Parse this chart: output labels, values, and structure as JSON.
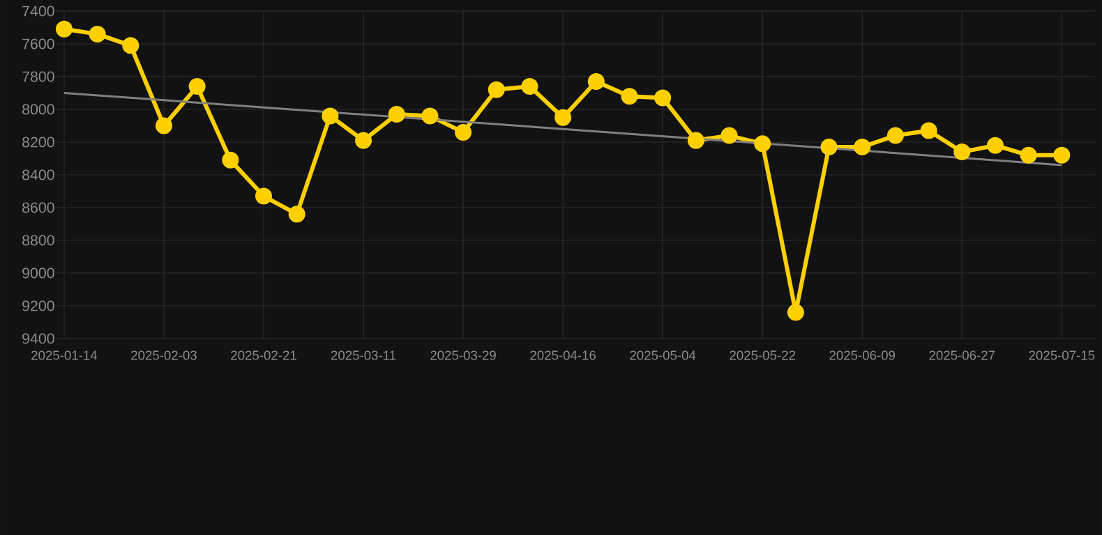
{
  "chart_data": {
    "type": "line",
    "categories": [
      "2025-01-14",
      null,
      null,
      "2025-02-03",
      null,
      null,
      "2025-02-21",
      null,
      null,
      "2025-03-11",
      null,
      null,
      "2025-03-29",
      null,
      null,
      "2025-04-16",
      null,
      null,
      "2025-05-04",
      null,
      null,
      "2025-05-22",
      null,
      null,
      "2025-06-09",
      null,
      null,
      "2025-06-27",
      null,
      null,
      "2025-07-15"
    ],
    "series": [
      {
        "color": "#ffd000",
        "marker": "circle",
        "values": [
          7510,
          7540,
          7610,
          8100,
          7860,
          8310,
          8530,
          8640,
          8040,
          8190,
          8030,
          8040,
          8140,
          7880,
          7860,
          8050,
          7830,
          7920,
          7930,
          8190,
          8160,
          8210,
          9240,
          8230,
          8230,
          8160,
          8130,
          8260,
          8220,
          8280,
          8280
        ]
      },
      {
        "type": "line",
        "color": "#808080",
        "marker": "none",
        "values": [
          7900,
          null,
          null,
          null,
          null,
          null,
          null,
          null,
          null,
          null,
          null,
          null,
          null,
          null,
          null,
          null,
          null,
          null,
          null,
          null,
          null,
          null,
          null,
          null,
          null,
          null,
          null,
          null,
          null,
          null,
          8340
        ]
      }
    ],
    "ylim": [
      9400,
      7400
    ],
    "yticks": [
      7400,
      7600,
      7800,
      8000,
      8200,
      8400,
      8600,
      8800,
      9000,
      9200,
      9400
    ],
    "grid": true
  }
}
